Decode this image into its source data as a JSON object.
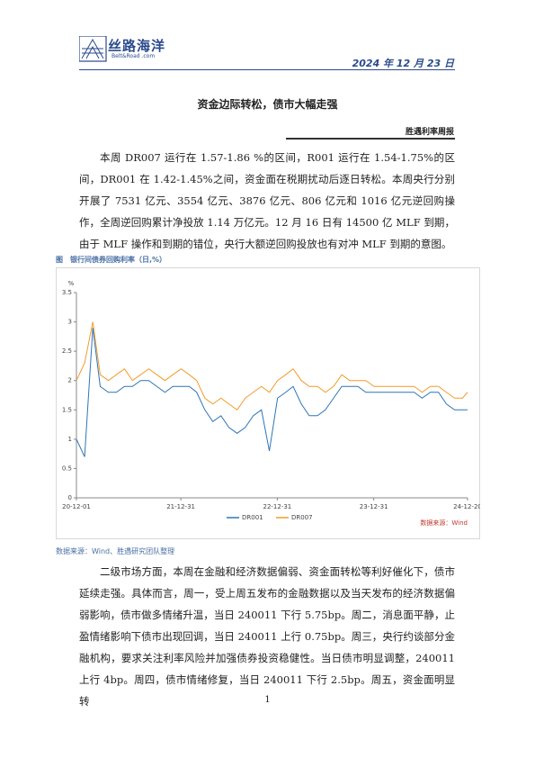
{
  "header": {
    "logo_name": "丝路海洋",
    "logo_sub": "Belt&Road .com",
    "date": "2024 年 12 月 23 日"
  },
  "title": "资金边际转松，债市大幅走强",
  "subtitle": "胜遇利率周报",
  "paragraphs": [
    "本周 DR007 运行在 1.57-1.86 %的区间，R001 运行在 1.54-1.75%的区间，DR001 在 1.42-1.45%之间，资金面在税期扰动后逐日转松。本周央行分别开展了 7531 亿元、3554 亿元、3876 亿元、806 亿元和 1016 亿元逆回购操作，全周逆回购累计净投放 1.14 万亿元。12 月 16 日有 14500 亿 MLF 到期，由于 MLF 操作和到期的错位，央行大额逆回购投放也有对冲 MLF 到期的意图。",
    "二级市场方面，本周在金融和经济数据偏弱、资金面转松等利好催化下，债市延续走强。具体而言，周一，受上周五发布的金融数据以及当天发布的经济数据偏弱影响，债市做多情绪升温，当日 240011 下行 5.75bp。周二，消息面平静，止盈情绪影响下债市出现回调，当日 240011 上行 0.75bp。周三，央行约谈部分金融机构，要求关注利率风险并加强债券投资稳健性。当日债市明显调整，240011 上行 4bp。周四，债市情绪修复，当日 240011 下行 2.5bp。周五，资金面明显转"
  ],
  "figure": {
    "caption": "图　银行间债券回购利率（日,%）",
    "source": "数据来源：Wind、胜遇研究团队整理",
    "chart_data": {
      "type": "line",
      "y_label": "%",
      "annotation": "数据来源：Wind",
      "x": [
        "20-12-01",
        "21-01-01",
        "21-02-01",
        "21-03-01",
        "21-04-01",
        "21-05-01",
        "21-06-01",
        "21-07-01",
        "21-08-01",
        "21-09-01",
        "21-10-01",
        "21-11-01",
        "21-12-01",
        "22-01-01",
        "22-02-01",
        "22-03-01",
        "22-04-01",
        "22-05-01",
        "22-06-01",
        "22-07-01",
        "22-08-01",
        "22-09-01",
        "22-10-01",
        "22-11-01",
        "22-12-01",
        "23-01-01",
        "23-02-01",
        "23-03-01",
        "23-04-01",
        "23-05-01",
        "23-06-01",
        "23-07-01",
        "23-08-01",
        "23-09-01",
        "23-10-01",
        "23-11-01",
        "23-12-01",
        "24-01-01",
        "24-02-01",
        "24-03-01",
        "24-04-01",
        "24-05-01",
        "24-06-01",
        "24-07-01",
        "24-08-01",
        "24-09-01",
        "24-10-01",
        "24-11-01",
        "24-12-01",
        "24-12-20"
      ],
      "series": [
        {
          "name": "DR001",
          "color": "#2e75b6",
          "values": [
            1.0,
            0.7,
            2.9,
            1.9,
            1.8,
            1.8,
            1.9,
            1.9,
            2.0,
            2.0,
            1.9,
            1.8,
            1.9,
            1.9,
            1.9,
            1.8,
            1.5,
            1.3,
            1.4,
            1.2,
            1.1,
            1.2,
            1.4,
            1.5,
            0.8,
            1.7,
            1.8,
            1.9,
            1.6,
            1.4,
            1.4,
            1.5,
            1.7,
            1.9,
            1.9,
            1.9,
            1.8,
            1.8,
            1.8,
            1.8,
            1.8,
            1.8,
            1.8,
            1.7,
            1.8,
            1.8,
            1.6,
            1.5,
            1.5,
            1.5
          ]
        },
        {
          "name": "DR007",
          "color": "#f39c2a",
          "values": [
            2.0,
            2.3,
            3.0,
            2.1,
            2.0,
            2.1,
            2.2,
            2.0,
            2.1,
            2.2,
            2.1,
            2.0,
            2.1,
            2.2,
            2.1,
            2.0,
            1.7,
            1.6,
            1.7,
            1.6,
            1.5,
            1.7,
            1.8,
            1.9,
            1.8,
            2.0,
            2.1,
            2.2,
            2.0,
            1.9,
            1.9,
            1.8,
            1.9,
            2.1,
            2.0,
            2.0,
            2.0,
            1.9,
            1.9,
            1.9,
            1.9,
            1.9,
            1.9,
            1.8,
            1.9,
            1.9,
            1.8,
            1.7,
            1.7,
            1.8
          ]
        }
      ],
      "xlim": [
        "20-12-01",
        "24-12-20"
      ],
      "xticks": [
        "20-12-01",
        "21-12-31",
        "22-12-31",
        "23-12-31",
        "24-12-20"
      ],
      "ylim": [
        0,
        3.5
      ],
      "yticks": [
        0,
        0.5,
        1,
        1.5,
        2,
        2.5,
        3,
        3.5
      ],
      "grid": false,
      "legend": "bottom"
    }
  },
  "page_number": "1"
}
